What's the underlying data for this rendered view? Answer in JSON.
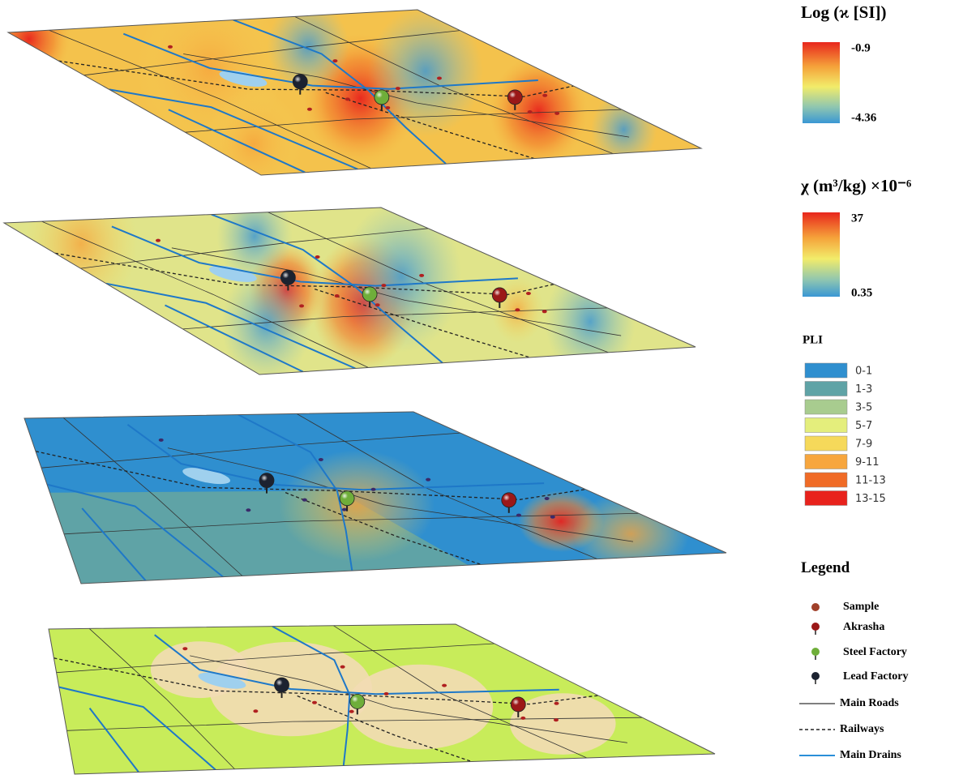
{
  "log_scale": {
    "title": "Log (ϰ [SI])",
    "max": "-0.9",
    "min": "-4.36"
  },
  "chi_scale": {
    "title": "χ (m³/kg) ×10⁻⁶",
    "max": "37",
    "min": "0.35"
  },
  "pli": {
    "title": "PLI",
    "classes": [
      {
        "label": "0-1",
        "color": "#2f8fcf"
      },
      {
        "label": "1-3",
        "color": "#5fa3a6"
      },
      {
        "label": "3-5",
        "color": "#a8cc8f"
      },
      {
        "label": "5-7",
        "color": "#e4ee7c"
      },
      {
        "label": "7-9",
        "color": "#f6d95a"
      },
      {
        "label": "9-11",
        "color": "#f7a63e"
      },
      {
        "label": "11-13",
        "color": "#f06b26"
      },
      {
        "label": "13-15",
        "color": "#e8221c"
      }
    ]
  },
  "legend": {
    "title": "Legend",
    "items": [
      "Sample",
      "Akrasha",
      "Steel Factory",
      "Lead Factory",
      "Main Roads",
      "Railways",
      "Main Drains"
    ]
  }
}
